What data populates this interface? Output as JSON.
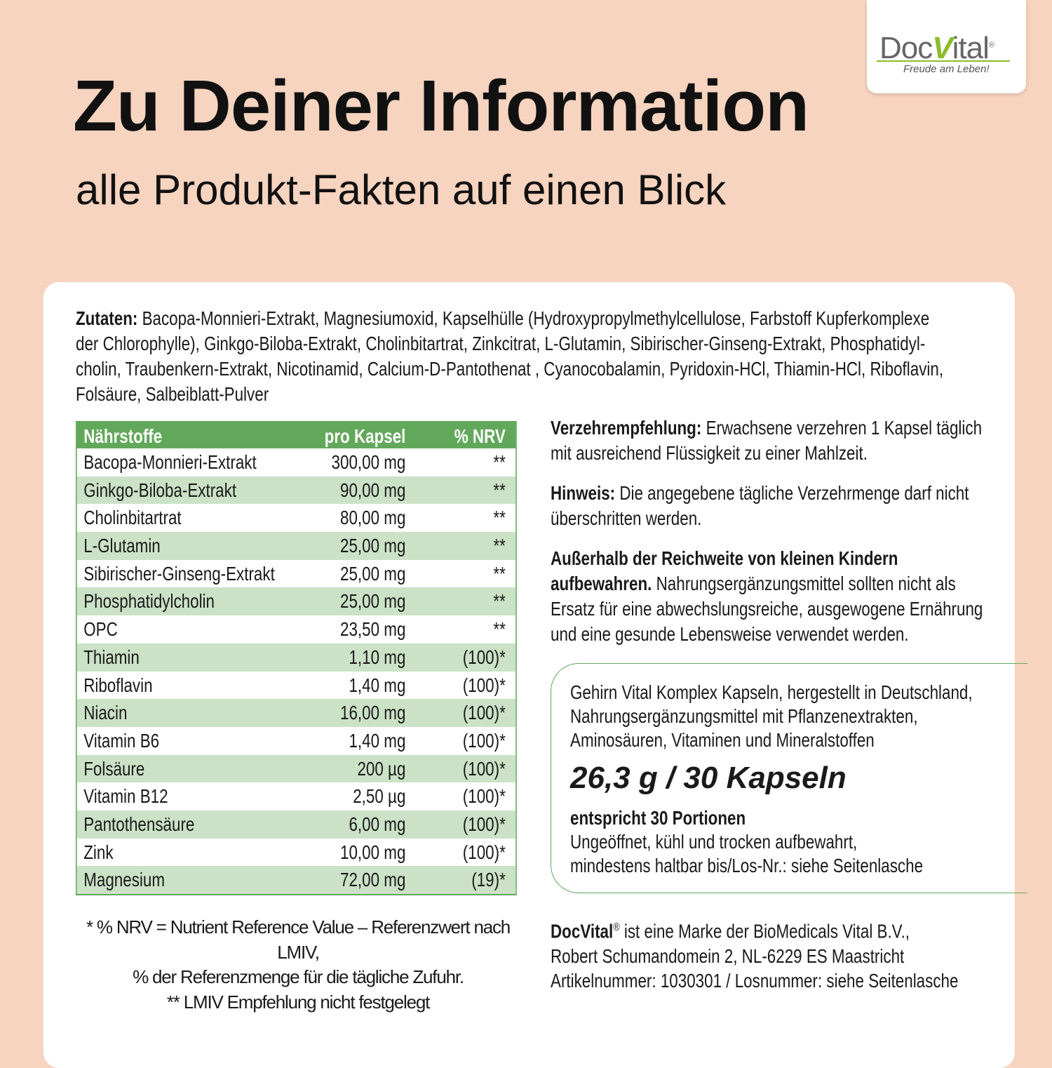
{
  "logo": {
    "brand_parts": [
      "Doc",
      "V",
      "ital"
    ],
    "registered": "®",
    "tagline": "Freude am Leben!"
  },
  "header": {
    "title": "Zu Deiner Information",
    "subtitle": "alle Produkt-Fakten auf einen Blick"
  },
  "ingredients": {
    "label": "Zutaten:",
    "lines": [
      "Bacopa-Monnieri-Extrakt, Magnesiumoxid, Kapselhülle (Hydroxypropylmethylcellulose, Farbstoff Kupferkomplexe",
      "der Chlorophylle), Ginkgo-Biloba-Extrakt, Cholinbitartrat, Zinkcitrat, L-Glutamin, Sibirischer-Ginseng-Extrakt, Phosphatidyl-",
      "cholin, Traubenkern-Extrakt, Nicotinamid, Calcium-D-Pantothenat , Cyanocobalamin, Pyridoxin-HCl, Thiamin-HCl, Riboflavin,",
      "Folsäure, Salbeiblatt-Pulver"
    ]
  },
  "table": {
    "headers": [
      "Nährstoffe",
      "pro Kapsel",
      "% NRV"
    ],
    "rows": [
      [
        "Bacopa-Monnieri-Extrakt",
        "300,00 mg",
        "**"
      ],
      [
        "Ginkgo-Biloba-Extrakt",
        "90,00 mg",
        "**"
      ],
      [
        "Cholinbitartrat",
        "80,00 mg",
        "**"
      ],
      [
        "L-Glutamin",
        "25,00 mg",
        "**"
      ],
      [
        "Sibirischer-Ginseng-Extrakt",
        "25,00 mg",
        "**"
      ],
      [
        "Phosphatidylcholin",
        "25,00 mg",
        "**"
      ],
      [
        "OPC",
        "23,50 mg",
        "**"
      ],
      [
        "Thiamin",
        "1,10 mg",
        "(100)*"
      ],
      [
        "Riboflavin",
        "1,40 mg",
        "(100)*"
      ],
      [
        "Niacin",
        "16,00 mg",
        "(100)*"
      ],
      [
        "Vitamin B6",
        "1,40 mg",
        "(100)*"
      ],
      [
        "Folsäure",
        "200 µg",
        "(100)*"
      ],
      [
        "Vitamin B12",
        "2,50 µg",
        "(100)*"
      ],
      [
        "Pantothensäure",
        "6,00 mg",
        "(100)*"
      ],
      [
        "Zink",
        "10,00 mg",
        "(100)*"
      ],
      [
        "Magnesium",
        "72,00 mg",
        "(19)*"
      ]
    ]
  },
  "recommendation": {
    "label": "Verzehrempfehlung:",
    "text": "Erwachsene verzehren 1 Kapsel täglich mit ausreichend Flüssigkeit zu einer Mahlzeit."
  },
  "notice": {
    "label": "Hinweis:",
    "text": "Die angegebene tägliche Verzehrmenge darf nicht überschritten werden."
  },
  "warning": {
    "label": "Außerhalb der Reichweite von kleinen Kindern aufbewahren.",
    "text": "Nahrungsergänzungsmittel sollten nicht als Ersatz für eine abwechslungsreiche, ausgewogene Ernährung und eine gesunde Lebensweise verwendet werden."
  },
  "product": {
    "description": [
      "Gehirn Vital Komplex Kapseln, hergestellt in Deutschland,",
      "Nahrungsergänzungsmittel mit Pflanzenextrakten,",
      "Aminosäuren, Vitaminen und Mineralstoffen"
    ],
    "quantity": "26,3 g / 30 Kapseln",
    "portions": "entspricht 30 Portionen",
    "storage": [
      "Ungeöffnet, kühl und trocken aufbewahrt,",
      "mindestens haltbar  bis/Los-Nr.: siehe Seitenlasche"
    ]
  },
  "footnotes": [
    "* % NRV = Nutrient Reference Value – Referenzwert nach LMIV,",
    "% der Referenzmenge für die tägliche Zufuhr.",
    "** LMIV Empfehlung nicht festgelegt"
  ],
  "company": {
    "brand": "DocVital",
    "registered": "®",
    "lines": [
      " ist eine Marke der BioMedicals Vital B.V.,",
      "Robert Schumandomein 2, NL-6229 ES Maastricht",
      "Artikelnummer: 1030301 / Losnummer: siehe Seitenlasche"
    ]
  }
}
